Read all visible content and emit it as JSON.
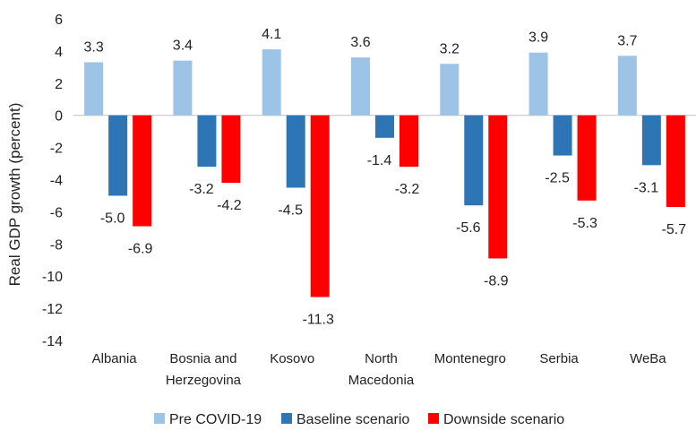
{
  "chart_data": {
    "type": "bar",
    "title": "",
    "xlabel": "",
    "ylabel": "Real GDP growth (percent)",
    "ylim": [
      -14,
      6
    ],
    "ytick_step": 2,
    "grid": false,
    "legend_position": "bottom",
    "categories": [
      [
        "Albania"
      ],
      [
        "Bosnia and",
        "Herzegovina"
      ],
      [
        "Kosovo"
      ],
      [
        "North",
        "Macedonia"
      ],
      [
        "Montenegro"
      ],
      [
        "Serbia"
      ],
      [
        "WeBa"
      ]
    ],
    "series": [
      {
        "name": "Pre COVID-19",
        "color": "#9DC3E6",
        "values": [
          3.3,
          3.4,
          4.1,
          3.6,
          3.2,
          3.9,
          3.7
        ],
        "labels": [
          "3.3",
          "3.4",
          "4.1",
          "3.6",
          "3.2",
          "3.9",
          "3.7"
        ]
      },
      {
        "name": "Baseline scenario",
        "color": "#2E75B6",
        "values": [
          -5.0,
          -3.2,
          -4.5,
          -1.4,
          -5.6,
          -2.5,
          -3.1
        ],
        "labels": [
          "-5.0",
          "-3.2",
          "-4.5",
          "-1.4",
          "-5.6",
          "-2.5",
          "-3.1"
        ]
      },
      {
        "name": "Downside scenario",
        "color": "#FF0000",
        "values": [
          -6.9,
          -4.2,
          -11.3,
          -3.2,
          -8.9,
          -5.3,
          -5.7
        ],
        "labels": [
          "-6.9",
          "-4.2",
          "-11.3",
          "-3.2",
          "-8.9",
          "-5.3",
          "-5.7"
        ]
      }
    ]
  }
}
